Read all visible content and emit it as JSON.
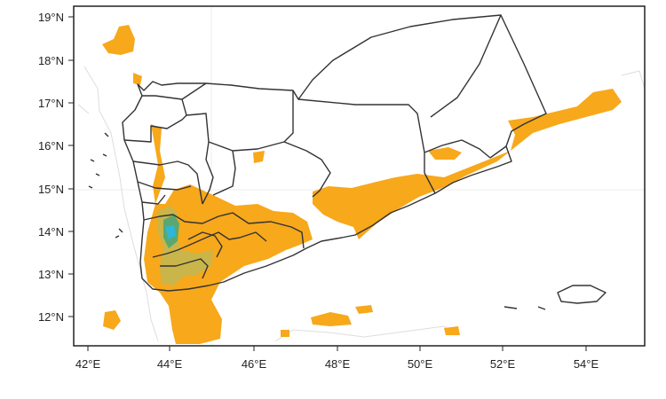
{
  "map": {
    "type": "precipitation-map",
    "lon_range": [
      41.8,
      55.4
    ],
    "lat_range": [
      11.3,
      19.2
    ],
    "x_ticks": [
      "42°E",
      "44°E",
      "46°E",
      "48°E",
      "50°E",
      "52°E",
      "54°E"
    ],
    "y_ticks": [
      "12°N",
      "13°N",
      "14°N",
      "15°N",
      "16°N",
      "17°N",
      "18°N",
      "19°N"
    ],
    "grid": true,
    "colors": {
      "frame": "#222222",
      "border": "#333333",
      "coast": "#dddddd",
      "shade_light": "#f7a81b",
      "shade_mid": "#c9b54a",
      "shade_high": "#5aa870",
      "shade_peak": "#2fb6d8"
    }
  }
}
